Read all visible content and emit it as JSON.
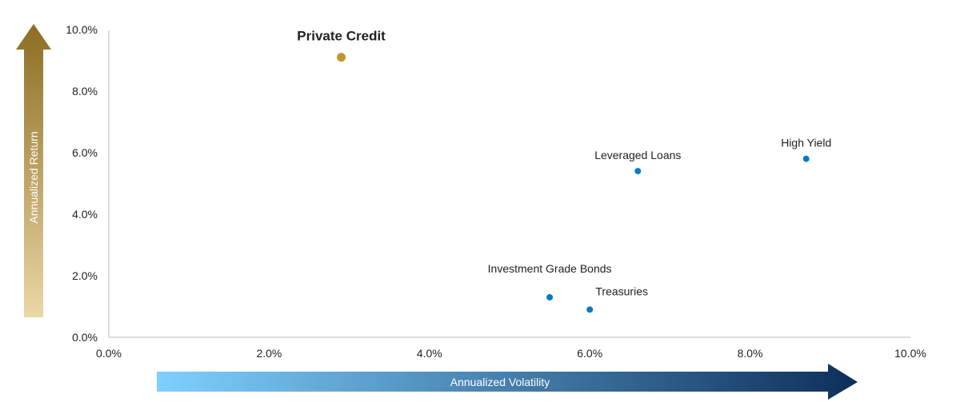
{
  "chart_data": {
    "type": "scatter",
    "xlabel": "Annualized Volatility",
    "ylabel": "Annualized Return",
    "xlim": [
      0,
      10
    ],
    "ylim": [
      0,
      10
    ],
    "x_ticks": [
      "0.0%",
      "2.0%",
      "4.0%",
      "6.0%",
      "8.0%",
      "10.0%"
    ],
    "y_ticks": [
      "0.0%",
      "2.0%",
      "4.0%",
      "6.0%",
      "8.0%",
      "10.0%"
    ],
    "grid": false,
    "points": [
      {
        "label": "Private Credit",
        "x": 2.9,
        "y": 9.1,
        "color": "#c0972f",
        "highlight": true
      },
      {
        "label": "Leveraged Loans",
        "x": 6.6,
        "y": 5.4,
        "color": "#0a7bc2"
      },
      {
        "label": "High Yield",
        "x": 8.7,
        "y": 5.8,
        "color": "#0a7bc2"
      },
      {
        "label": "Investment Grade Bonds",
        "x": 5.5,
        "y": 1.3,
        "color": "#0a7bc2"
      },
      {
        "label": "Treasuries",
        "x": 6.0,
        "y": 0.9,
        "color": "#0a7bc2"
      }
    ],
    "colors": {
      "return_arrow_top": "#8c6d22",
      "return_arrow_bottom": "#ead7a6",
      "volatility_arrow_start": "#7fd0ff",
      "volatility_arrow_end": "#0d2f5a"
    }
  }
}
